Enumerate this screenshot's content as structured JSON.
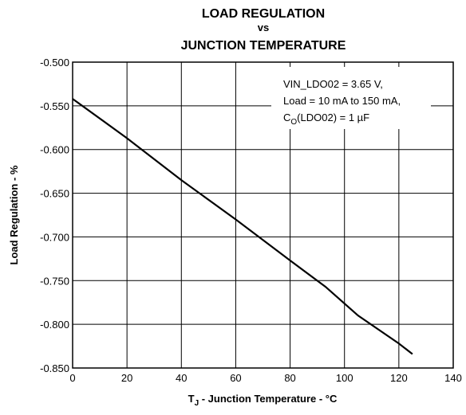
{
  "chart_data": {
    "type": "line",
    "title": [
      "LOAD REGULATION",
      "vs",
      "JUNCTION TEMPERATURE"
    ],
    "xlabel": [
      "T",
      "J",
      " - Junction Temperature - °C"
    ],
    "ylabel": "Load Regulation - %",
    "annotation": [
      "VIN_LDO02 = 3.65 V,",
      "Load = 10 mA to 150 mA,",
      [
        "C",
        "O",
        "(LDO02) = 1 µF"
      ]
    ],
    "x": [
      0,
      20,
      40,
      60,
      80,
      93,
      105,
      120,
      125
    ],
    "series": [
      {
        "name": "Load Regulation",
        "color": "#000000",
        "values": [
          -0.542,
          -0.587,
          -0.635,
          -0.68,
          -0.727,
          -0.757,
          -0.79,
          -0.822,
          -0.834
        ]
      }
    ],
    "xlim": [
      0,
      140
    ],
    "xticks": [
      0,
      20,
      40,
      60,
      80,
      100,
      120,
      140
    ],
    "ylim": [
      -0.85,
      -0.5
    ],
    "yticks": [
      {
        "value": -0.85,
        "label": "-0.850"
      },
      {
        "value": -0.8,
        "label": "-0.800"
      },
      {
        "value": -0.75,
        "label": "-0.750"
      },
      {
        "value": -0.7,
        "label": "-0.700"
      },
      {
        "value": -0.65,
        "label": "-0.650"
      },
      {
        "value": -0.6,
        "label": "-0.600"
      },
      {
        "value": -0.55,
        "label": "-0.550"
      },
      {
        "value": -0.5,
        "label": "-0.500"
      }
    ],
    "grid": true
  }
}
